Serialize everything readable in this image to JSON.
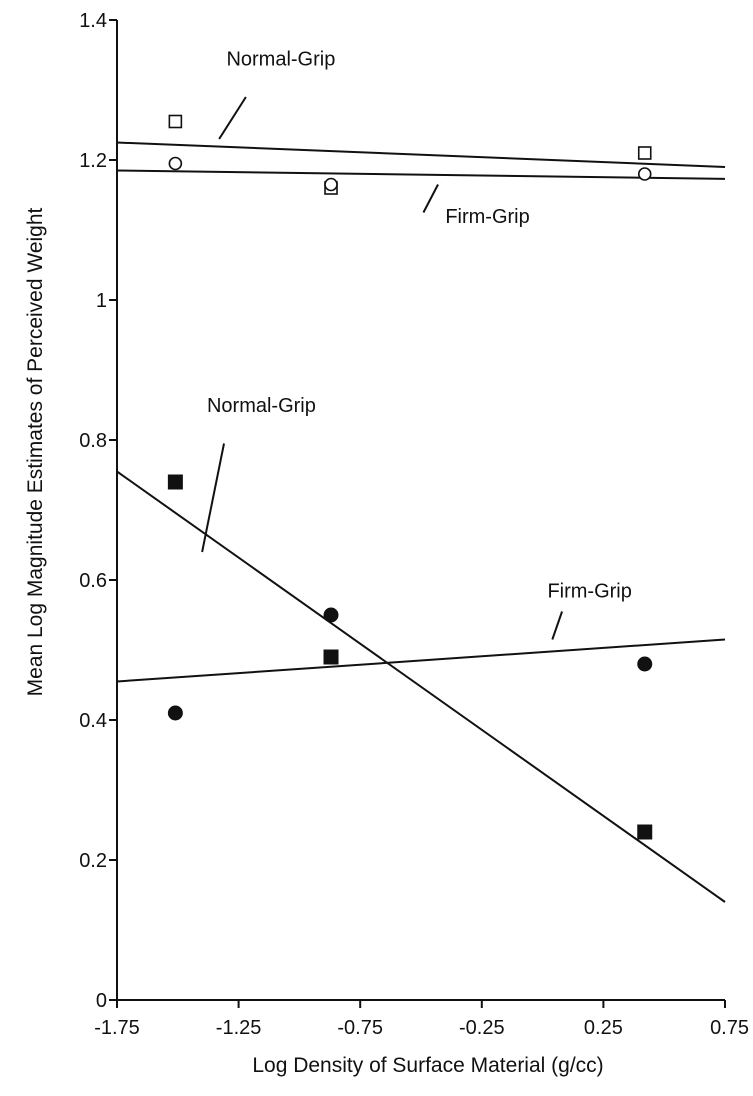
{
  "chart_data": {
    "type": "scatter",
    "title": "",
    "xlabel": "Log Density of Surface Material (g/cc)",
    "ylabel": "Mean Log Magnitude Estimates of Perceived Weight",
    "xlim": [
      -1.75,
      0.75
    ],
    "ylim": [
      0,
      1.4
    ],
    "x_ticks": [
      "-1.75",
      "-1.25",
      "-0.75",
      "-0.25",
      "0.25",
      "0.75"
    ],
    "y_ticks": [
      "0",
      "0.2",
      "0.4",
      "0.6",
      "0.8",
      "1",
      "1.2",
      "1.4"
    ],
    "grid": false,
    "legend": "none",
    "series": [
      {
        "key": "upper-normal",
        "marker": "square-open",
        "x": [
          -1.51,
          -0.87,
          0.42
        ],
        "y": [
          1.255,
          1.16,
          1.21
        ],
        "fit": {
          "x": [
            -1.75,
            0.75
          ],
          "y": [
            1.225,
            1.19
          ]
        }
      },
      {
        "key": "upper-firm",
        "marker": "circle-open",
        "x": [
          -1.51,
          -0.87,
          0.42
        ],
        "y": [
          1.195,
          1.165,
          1.18
        ],
        "fit": {
          "x": [
            -1.75,
            0.75
          ],
          "y": [
            1.185,
            1.173
          ]
        }
      },
      {
        "key": "lower-normal",
        "marker": "square-filled",
        "x": [
          -1.51,
          -0.87,
          0.42
        ],
        "y": [
          0.74,
          0.49,
          0.24
        ],
        "fit": {
          "x": [
            -1.75,
            0.75
          ],
          "y": [
            0.755,
            0.14
          ]
        }
      },
      {
        "key": "lower-firm",
        "marker": "circle-filled",
        "x": [
          -1.51,
          -0.87,
          0.42
        ],
        "y": [
          0.41,
          0.55,
          0.48
        ],
        "fit": {
          "x": [
            -1.75,
            0.75
          ],
          "y": [
            0.455,
            0.515
          ]
        }
      }
    ],
    "annotations": [
      {
        "key": "upper-normal",
        "text": "Normal-Grip",
        "pos": [
          -1.3,
          1.335
        ],
        "leader": [
          [
            -1.22,
            1.29
          ],
          [
            -1.33,
            1.23
          ]
        ]
      },
      {
        "key": "upper-firm",
        "text": "Firm-Grip",
        "pos": [
          -0.4,
          1.11
        ],
        "leader": [
          [
            -0.43,
            1.165
          ],
          [
            -0.49,
            1.125
          ]
        ]
      },
      {
        "key": "lower-normal",
        "text": "Normal-Grip",
        "pos": [
          -1.38,
          0.84
        ],
        "leader": [
          [
            -1.31,
            0.795
          ],
          [
            -1.4,
            0.64
          ]
        ]
      },
      {
        "key": "lower-firm",
        "text": "Firm-Grip",
        "pos": [
          0.02,
          0.575
        ],
        "leader": [
          [
            0.08,
            0.555
          ],
          [
            0.04,
            0.515
          ]
        ]
      }
    ]
  }
}
